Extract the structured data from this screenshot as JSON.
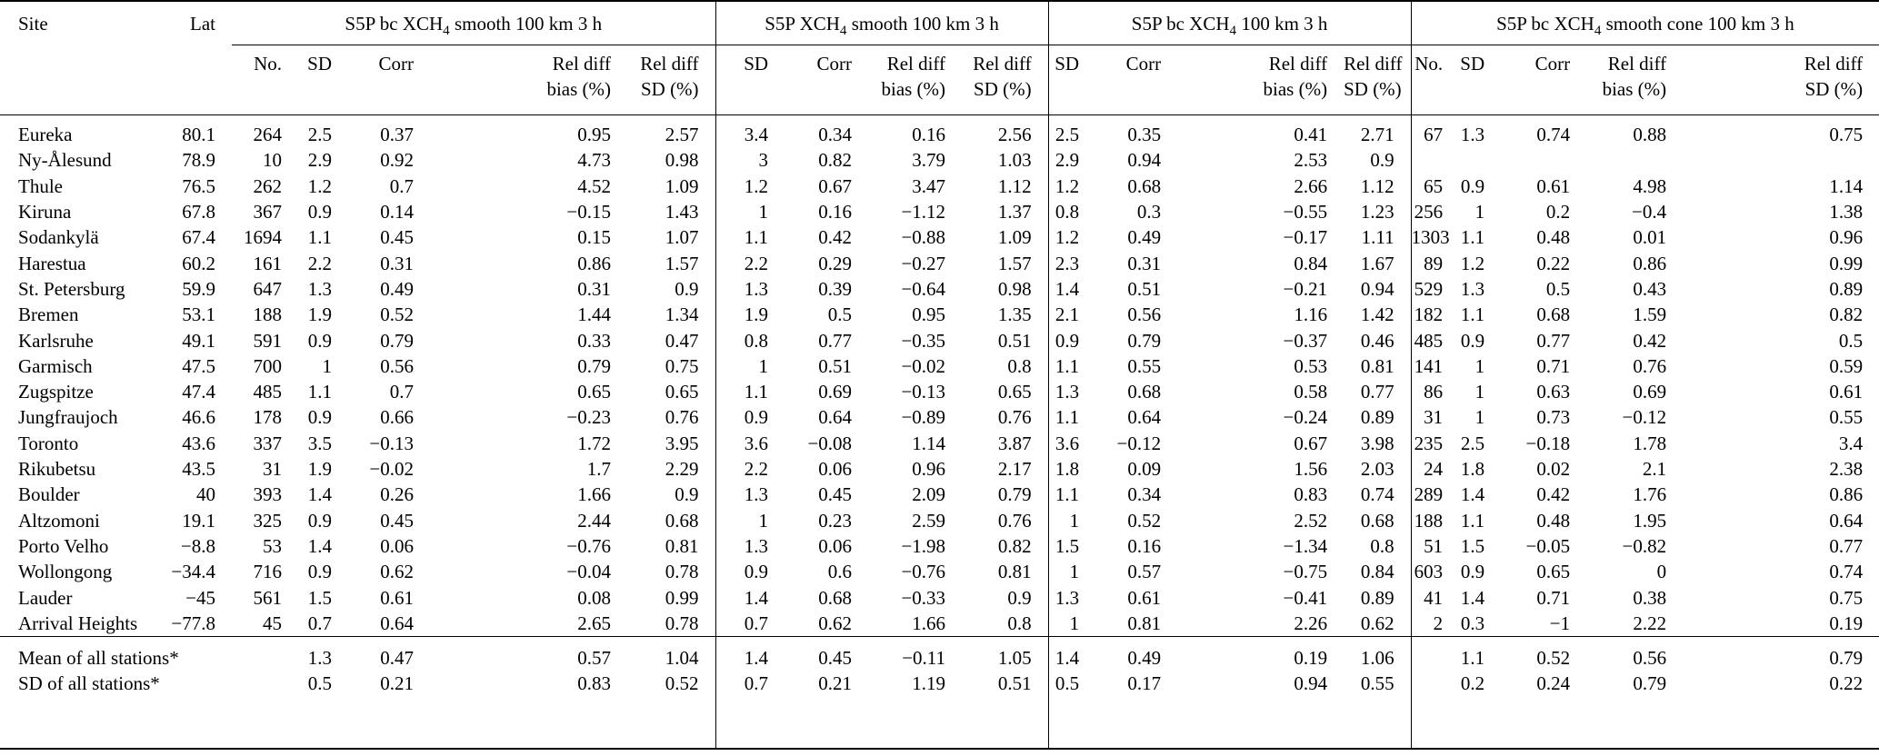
{
  "header": {
    "site": "Site",
    "lat": "Lat",
    "groups": [
      {
        "title_pre": "S5P bc XCH",
        "title_sub": "4",
        "title_post": " smooth 100 km 3 h",
        "columns": [
          "No.",
          "SD",
          "Corr",
          "Rel diff\nbias (%)",
          "Rel diff\nSD (%)"
        ]
      },
      {
        "title_pre": "S5P XCH",
        "title_sub": "4",
        "title_post": " smooth 100 km 3 h",
        "columns": [
          "SD",
          "Corr",
          "Rel diff\nbias (%)",
          "Rel diff\nSD (%)"
        ]
      },
      {
        "title_pre": "S5P bc XCH",
        "title_sub": "4",
        "title_post": " 100 km 3 h",
        "columns": [
          "SD",
          "Corr",
          "Rel diff\nbias (%)",
          "Rel diff\nSD (%)"
        ]
      },
      {
        "title_pre": "S5P bc XCH",
        "title_sub": "4",
        "title_post": " smooth cone 100 km 3 h",
        "columns": [
          "No.",
          "SD",
          "Corr",
          "Rel diff\nbias (%)",
          "Rel diff\nSD (%)"
        ]
      }
    ]
  },
  "rows": [
    {
      "site": "Eureka",
      "lat": "80.1",
      "values": [
        "264",
        "2.5",
        "0.37",
        "0.95",
        "2.57",
        "3.4",
        "0.34",
        "0.16",
        "2.56",
        "2.5",
        "0.35",
        "0.41",
        "2.71",
        "67",
        "1.3",
        "0.74",
        "0.88",
        "0.75"
      ]
    },
    {
      "site": "Ny-Ålesund",
      "lat": "78.9",
      "values": [
        "10",
        "2.9",
        "0.92",
        "4.73",
        "0.98",
        "3",
        "0.82",
        "3.79",
        "1.03",
        "2.9",
        "0.94",
        "2.53",
        "0.9",
        "",
        "",
        "",
        "",
        ""
      ]
    },
    {
      "site": "Thule",
      "lat": "76.5",
      "values": [
        "262",
        "1.2",
        "0.7",
        "4.52",
        "1.09",
        "1.2",
        "0.67",
        "3.47",
        "1.12",
        "1.2",
        "0.68",
        "2.66",
        "1.12",
        "65",
        "0.9",
        "0.61",
        "4.98",
        "1.14"
      ]
    },
    {
      "site": "Kiruna",
      "lat": "67.8",
      "values": [
        "367",
        "0.9",
        "0.14",
        "−0.15",
        "1.43",
        "1",
        "0.16",
        "−1.12",
        "1.37",
        "0.8",
        "0.3",
        "−0.55",
        "1.23",
        "256",
        "1",
        "0.2",
        "−0.4",
        "1.38"
      ]
    },
    {
      "site": "Sodankylä",
      "lat": "67.4",
      "values": [
        "1694",
        "1.1",
        "0.45",
        "0.15",
        "1.07",
        "1.1",
        "0.42",
        "−0.88",
        "1.09",
        "1.2",
        "0.49",
        "−0.17",
        "1.11",
        "1303",
        "1.1",
        "0.48",
        "0.01",
        "0.96"
      ]
    },
    {
      "site": "Harestua",
      "lat": "60.2",
      "values": [
        "161",
        "2.2",
        "0.31",
        "0.86",
        "1.57",
        "2.2",
        "0.29",
        "−0.27",
        "1.57",
        "2.3",
        "0.31",
        "0.84",
        "1.67",
        "89",
        "1.2",
        "0.22",
        "0.86",
        "0.99"
      ]
    },
    {
      "site": "St. Petersburg",
      "lat": "59.9",
      "values": [
        "647",
        "1.3",
        "0.49",
        "0.31",
        "0.9",
        "1.3",
        "0.39",
        "−0.64",
        "0.98",
        "1.4",
        "0.51",
        "−0.21",
        "0.94",
        "529",
        "1.3",
        "0.5",
        "0.43",
        "0.89"
      ]
    },
    {
      "site": "Bremen",
      "lat": "53.1",
      "values": [
        "188",
        "1.9",
        "0.52",
        "1.44",
        "1.34",
        "1.9",
        "0.5",
        "0.95",
        "1.35",
        "2.1",
        "0.56",
        "1.16",
        "1.42",
        "182",
        "1.1",
        "0.68",
        "1.59",
        "0.82"
      ]
    },
    {
      "site": "Karlsruhe",
      "lat": "49.1",
      "values": [
        "591",
        "0.9",
        "0.79",
        "0.33",
        "0.47",
        "0.8",
        "0.77",
        "−0.35",
        "0.51",
        "0.9",
        "0.79",
        "−0.37",
        "0.46",
        "485",
        "0.9",
        "0.77",
        "0.42",
        "0.5"
      ]
    },
    {
      "site": "Garmisch",
      "lat": "47.5",
      "values": [
        "700",
        "1",
        "0.56",
        "0.79",
        "0.75",
        "1",
        "0.51",
        "−0.02",
        "0.8",
        "1.1",
        "0.55",
        "0.53",
        "0.81",
        "141",
        "1",
        "0.71",
        "0.76",
        "0.59"
      ]
    },
    {
      "site": "Zugspitze",
      "lat": "47.4",
      "values": [
        "485",
        "1.1",
        "0.7",
        "0.65",
        "0.65",
        "1.1",
        "0.69",
        "−0.13",
        "0.65",
        "1.3",
        "0.68",
        "0.58",
        "0.77",
        "86",
        "1",
        "0.63",
        "0.69",
        "0.61"
      ]
    },
    {
      "site": "Jungfraujoch",
      "lat": "46.6",
      "values": [
        "178",
        "0.9",
        "0.66",
        "−0.23",
        "0.76",
        "0.9",
        "0.64",
        "−0.89",
        "0.76",
        "1.1",
        "0.64",
        "−0.24",
        "0.89",
        "31",
        "1",
        "0.73",
        "−0.12",
        "0.55"
      ]
    },
    {
      "site": "Toronto",
      "lat": "43.6",
      "values": [
        "337",
        "3.5",
        "−0.13",
        "1.72",
        "3.95",
        "3.6",
        "−0.08",
        "1.14",
        "3.87",
        "3.6",
        "−0.12",
        "0.67",
        "3.98",
        "235",
        "2.5",
        "−0.18",
        "1.78",
        "3.4"
      ]
    },
    {
      "site": "Rikubetsu",
      "lat": "43.5",
      "values": [
        "31",
        "1.9",
        "−0.02",
        "1.7",
        "2.29",
        "2.2",
        "0.06",
        "0.96",
        "2.17",
        "1.8",
        "0.09",
        "1.56",
        "2.03",
        "24",
        "1.8",
        "0.02",
        "2.1",
        "2.38"
      ]
    },
    {
      "site": "Boulder",
      "lat": "40",
      "values": [
        "393",
        "1.4",
        "0.26",
        "1.66",
        "0.9",
        "1.3",
        "0.45",
        "2.09",
        "0.79",
        "1.1",
        "0.34",
        "0.83",
        "0.74",
        "289",
        "1.4",
        "0.42",
        "1.76",
        "0.86"
      ]
    },
    {
      "site": "Altzomoni",
      "lat": "19.1",
      "values": [
        "325",
        "0.9",
        "0.45",
        "2.44",
        "0.68",
        "1",
        "0.23",
        "2.59",
        "0.76",
        "1",
        "0.52",
        "2.52",
        "0.68",
        "188",
        "1.1",
        "0.48",
        "1.95",
        "0.64"
      ]
    },
    {
      "site": "Porto Velho",
      "lat": "−8.8",
      "values": [
        "53",
        "1.4",
        "0.06",
        "−0.76",
        "0.81",
        "1.3",
        "0.06",
        "−1.98",
        "0.82",
        "1.5",
        "0.16",
        "−1.34",
        "0.8",
        "51",
        "1.5",
        "−0.05",
        "−0.82",
        "0.77"
      ]
    },
    {
      "site": "Wollongong",
      "lat": "−34.4",
      "values": [
        "716",
        "0.9",
        "0.62",
        "−0.04",
        "0.78",
        "0.9",
        "0.6",
        "−0.76",
        "0.81",
        "1",
        "0.57",
        "−0.75",
        "0.84",
        "603",
        "0.9",
        "0.65",
        "0",
        "0.74"
      ]
    },
    {
      "site": "Lauder",
      "lat": "−45",
      "values": [
        "561",
        "1.5",
        "0.61",
        "0.08",
        "0.99",
        "1.4",
        "0.68",
        "−0.33",
        "0.9",
        "1.3",
        "0.61",
        "−0.41",
        "0.89",
        "41",
        "1.4",
        "0.71",
        "0.38",
        "0.75"
      ]
    },
    {
      "site": "Arrival Heights",
      "lat": "−77.8",
      "values": [
        "45",
        "0.7",
        "0.64",
        "2.65",
        "0.78",
        "0.7",
        "0.62",
        "1.66",
        "0.8",
        "1",
        "0.81",
        "2.26",
        "0.62",
        "2",
        "0.3",
        "−1",
        "2.22",
        "0.19"
      ]
    }
  ],
  "footer_rows": [
    {
      "site": "Mean of all stations*",
      "lat": "",
      "values": [
        "",
        "1.3",
        "0.47",
        "0.57",
        "1.04",
        "1.4",
        "0.45",
        "−0.11",
        "1.05",
        "1.4",
        "0.49",
        "0.19",
        "1.06",
        "",
        "1.1",
        "0.52",
        "0.56",
        "0.79"
      ]
    },
    {
      "site": "SD of all stations*",
      "lat": "",
      "values": [
        "",
        "0.5",
        "0.21",
        "0.83",
        "0.52",
        "0.7",
        "0.21",
        "1.19",
        "0.51",
        "0.5",
        "0.17",
        "0.94",
        "0.55",
        "",
        "0.2",
        "0.24",
        "0.79",
        "0.22"
      ]
    }
  ]
}
